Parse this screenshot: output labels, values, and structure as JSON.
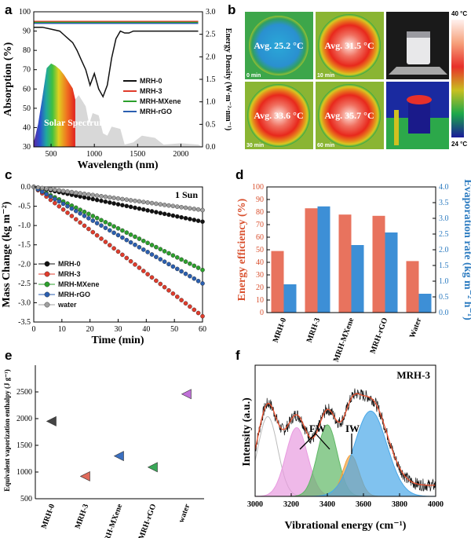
{
  "panels": {
    "a": "a",
    "b": "b",
    "c": "c",
    "d": "d",
    "e": "e",
    "f": "f"
  },
  "chart_data": [
    {
      "panel": "a",
      "type": "line",
      "xlabel": "Wavelength (nm)",
      "ylabel": "Absorption (%)",
      "y2label": "Energy Density (W·m⁻²·nm⁻¹)",
      "xlim": [
        300,
        2250
      ],
      "ylim": [
        30,
        100
      ],
      "y2lim": [
        0,
        3.0
      ],
      "xticks": [
        500,
        1000,
        1500,
        2000
      ],
      "yticks": [
        30,
        40,
        50,
        60,
        70,
        80,
        90,
        100
      ],
      "y2ticks": [
        "0.0",
        "0.5",
        "1.0",
        "1.5",
        "2.0",
        "2.5",
        "3.0"
      ],
      "spectrum_label": "Solar Spectrum",
      "series": [
        {
          "name": "MRH-0",
          "color": "#111111",
          "x": [
            300,
            400,
            500,
            600,
            650,
            700,
            750,
            800,
            850,
            900,
            950,
            1000,
            1050,
            1100,
            1150,
            1200,
            1250,
            1300,
            1350,
            1400,
            1450,
            1500,
            1550,
            1600,
            1650,
            1700,
            1800,
            1900,
            2000,
            2100,
            2200
          ],
          "y": [
            92,
            92,
            91,
            90,
            88,
            86,
            84,
            80,
            75,
            70,
            62,
            68,
            60,
            56,
            62,
            76,
            86,
            90,
            89,
            89,
            90,
            90,
            90,
            90,
            90,
            90,
            90,
            90,
            90,
            90,
            90
          ]
        },
        {
          "name": "MRH-3",
          "color": "#e03c2c",
          "x": [
            300,
            700,
            1100,
            1500,
            1900,
            2200
          ],
          "y": [
            95,
            95,
            95,
            95,
            95,
            95
          ]
        },
        {
          "name": "MRH-MXene",
          "color": "#2ca02c",
          "x": [
            300,
            700,
            1100,
            1500,
            1900,
            2200
          ],
          "y": [
            94.5,
            94.5,
            94.5,
            94.5,
            94.5,
            94.5
          ]
        },
        {
          "name": "MRH-rGO",
          "color": "#2b5fb0",
          "x": [
            300,
            700,
            1100,
            1500,
            1900,
            2200
          ],
          "y": [
            94,
            94,
            94,
            94,
            94,
            94
          ]
        }
      ]
    },
    {
      "panel": "c",
      "type": "scatter",
      "title": "1 Sun",
      "xlabel": "Time (min)",
      "ylabel": "Mass Change (kg m⁻²)",
      "xlim": [
        0,
        60
      ],
      "ylim": [
        -3.5,
        0
      ],
      "xticks": [
        0,
        10,
        20,
        30,
        40,
        50,
        60
      ],
      "yticks": [
        "0.0",
        "-0.5",
        "-1.0",
        "-1.5",
        "-2.0",
        "-2.5",
        "-3.0",
        "-3.5"
      ],
      "series": [
        {
          "name": "MRH-0",
          "color": "#111111",
          "end": -0.9
        },
        {
          "name": "MRH-3",
          "color": "#e03c2c",
          "end": -3.35
        },
        {
          "name": "MRH-MXene",
          "color": "#2ca02c",
          "end": -2.15
        },
        {
          "name": "MRH-rGO",
          "color": "#2b5fb0",
          "end": -2.5
        },
        {
          "name": "water",
          "color": "#a0a0a0",
          "end": -0.6
        }
      ]
    },
    {
      "panel": "d",
      "type": "bar",
      "ylabel": "Energy efficiency (%)",
      "y2label": "Evaporation rate (kg m⁻² h⁻¹)",
      "ylim": [
        0,
        100
      ],
      "y2lim": [
        0,
        4.0
      ],
      "yticks": [
        0,
        10,
        20,
        30,
        40,
        50,
        60,
        70,
        80,
        90,
        100
      ],
      "y2ticks": [
        "0.0",
        "0.5",
        "1.0",
        "1.5",
        "2.0",
        "2.5",
        "3.0",
        "3.5",
        "4.0"
      ],
      "categories": [
        "MRH-0",
        "MRH-3",
        "MRH-MXene",
        "MRH-rGO",
        "Water"
      ],
      "series": [
        {
          "name": "Energy efficiency",
          "color": "#e8735e",
          "values": [
            49,
            83,
            78,
            77,
            41
          ]
        },
        {
          "name": "Evaporation rate",
          "color": "#3d8fd6",
          "values": [
            0.9,
            3.38,
            2.15,
            2.55,
            0.6
          ]
        }
      ]
    },
    {
      "panel": "e",
      "type": "scatter",
      "ylabel": "Equivalent vaporization enthalpy (J g⁻¹)",
      "ylim": [
        500,
        3000
      ],
      "yticks": [
        500,
        1000,
        1500,
        2000,
        2500
      ],
      "categories": [
        "MRH-0",
        "MRH-3",
        "MRH-MXene",
        "MRH-rGO",
        "water"
      ],
      "values": [
        1950,
        920,
        1300,
        1090,
        2460
      ],
      "colors": [
        "#444444",
        "#e06b5b",
        "#3a6fc0",
        "#3aa858",
        "#c070d8"
      ]
    },
    {
      "panel": "f",
      "type": "line",
      "title": "MRH-3",
      "xlabel": "Vibrational energy (cm⁻¹)",
      "ylabel": "Intensity (a.u.)",
      "xlim": [
        3000,
        4000
      ],
      "xticks": [
        3000,
        3200,
        3400,
        3600,
        3800,
        4000
      ],
      "annotations": [
        "FW",
        "IW"
      ],
      "peaks": [
        {
          "center": 3070,
          "height": 0.58,
          "width": 55,
          "color": "#bbbbbb"
        },
        {
          "center": 3230,
          "height": 0.5,
          "width": 60,
          "color": "#e89be0"
        },
        {
          "center": 3400,
          "height": 0.52,
          "width": 55,
          "color": "#5fb865"
        },
        {
          "center": 3530,
          "height": 0.3,
          "width": 45,
          "color": "#f0a040"
        },
        {
          "center": 3640,
          "height": 0.62,
          "width": 90,
          "color": "#4aa8e8"
        }
      ]
    }
  ],
  "thermal": {
    "labels": [
      "Avg. 25.2 °C",
      "Avg. 31.5 °C",
      "Avg. 33.6 °C",
      "Avg. 35.7 °C"
    ],
    "times": [
      "0 min",
      "10 min",
      "30 min",
      "60 min"
    ],
    "scale_max": "40 °C",
    "scale_min": "24 °C"
  }
}
